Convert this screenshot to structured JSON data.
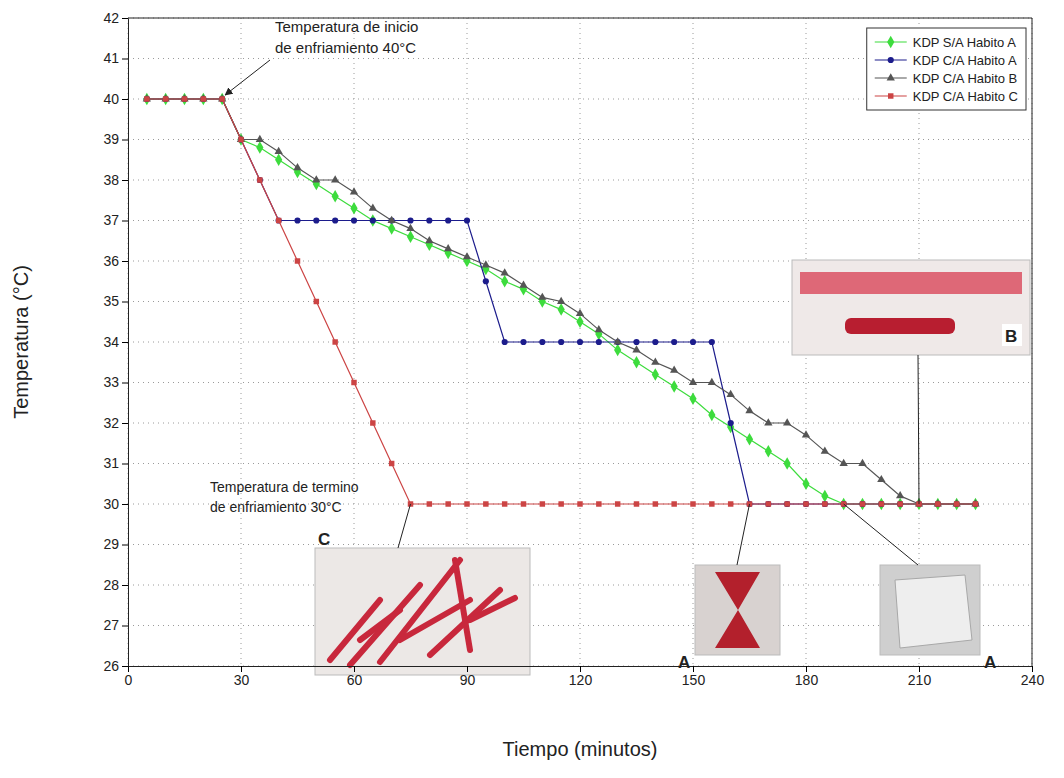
{
  "chart_data": {
    "type": "line",
    "x_label": "Tiempo (minutos)",
    "y_label": "Temperatura (°C)",
    "xlim": [
      0,
      240
    ],
    "xticks": [
      0,
      30,
      60,
      90,
      120,
      150,
      180,
      210,
      240
    ],
    "ylim": [
      26,
      42
    ],
    "yticks": [
      26,
      27,
      28,
      29,
      30,
      31,
      32,
      33,
      34,
      35,
      36,
      37,
      38,
      39,
      40,
      41,
      42
    ],
    "grid": true,
    "legend": "top-right",
    "x": [
      5,
      10,
      15,
      20,
      25,
      30,
      35,
      40,
      45,
      50,
      55,
      60,
      65,
      70,
      75,
      80,
      85,
      90,
      95,
      100,
      105,
      110,
      115,
      120,
      125,
      130,
      135,
      140,
      145,
      150,
      155,
      160,
      165,
      170,
      175,
      180,
      185,
      190,
      195,
      200,
      205,
      210,
      215,
      220,
      225
    ],
    "series": [
      {
        "name": "KDP S/A Habito A",
        "color": "#3ddc3d",
        "marker": "diamond",
        "values": [
          40,
          40,
          40,
          40,
          40,
          39,
          38.8,
          38.5,
          38.2,
          37.9,
          37.6,
          37.3,
          37.0,
          36.8,
          36.6,
          36.4,
          36.2,
          36.0,
          35.8,
          35.5,
          35.3,
          35.0,
          34.8,
          34.5,
          34.2,
          33.8,
          33.5,
          33.2,
          32.9,
          32.6,
          32.2,
          31.9,
          31.6,
          31.3,
          31.0,
          30.5,
          30.2,
          30,
          30,
          30,
          30,
          30,
          30,
          30,
          30
        ]
      },
      {
        "name": "KDP C/A Habito A",
        "color": "#1c1c8c",
        "marker": "circle",
        "values": [
          40,
          40,
          40,
          40,
          40,
          39,
          38,
          37,
          37,
          37,
          37,
          37,
          37,
          37,
          37,
          37,
          37,
          37,
          35.5,
          34,
          34,
          34,
          34,
          34,
          34,
          34,
          34,
          34,
          34,
          34,
          34,
          32,
          30,
          30,
          30,
          30,
          30,
          30,
          30,
          30,
          30,
          30,
          30,
          30,
          30
        ]
      },
      {
        "name": "KDP C/A Habito B",
        "color": "#555555",
        "marker": "triangle",
        "values": [
          40,
          40,
          40,
          40,
          40,
          39,
          39,
          38.7,
          38.3,
          38,
          38,
          37.7,
          37.3,
          37,
          36.8,
          36.5,
          36.3,
          36.1,
          35.9,
          35.7,
          35.4,
          35.1,
          35,
          34.7,
          34.3,
          34,
          33.8,
          33.5,
          33.3,
          33,
          33,
          32.7,
          32.3,
          32,
          32,
          31.7,
          31.3,
          31,
          31,
          30.6,
          30.2,
          30,
          30,
          30,
          30
        ]
      },
      {
        "name": "KDP C/A Habito C",
        "color": "#cc4444",
        "marker": "square",
        "values": [
          40,
          40,
          40,
          40,
          40,
          39,
          38,
          37,
          36,
          35,
          34,
          33,
          32,
          31,
          30,
          30,
          30,
          30,
          30,
          30,
          30,
          30,
          30,
          30,
          30,
          30,
          30,
          30,
          30,
          30,
          30,
          30,
          30,
          30,
          30,
          30,
          30,
          30,
          30,
          30,
          30,
          30,
          30,
          30,
          30
        ]
      }
    ],
    "annotations": [
      {
        "text": [
          "Temperatura de inicio",
          "de enfriamiento 40°C"
        ]
      },
      {
        "text": [
          "Temperatura de termino",
          "de enfriamiento 30°C"
        ]
      },
      {
        "text": [
          "C"
        ]
      },
      {
        "text": [
          "A"
        ]
      },
      {
        "text": [
          "A"
        ]
      },
      {
        "text": [
          "B"
        ]
      }
    ]
  }
}
